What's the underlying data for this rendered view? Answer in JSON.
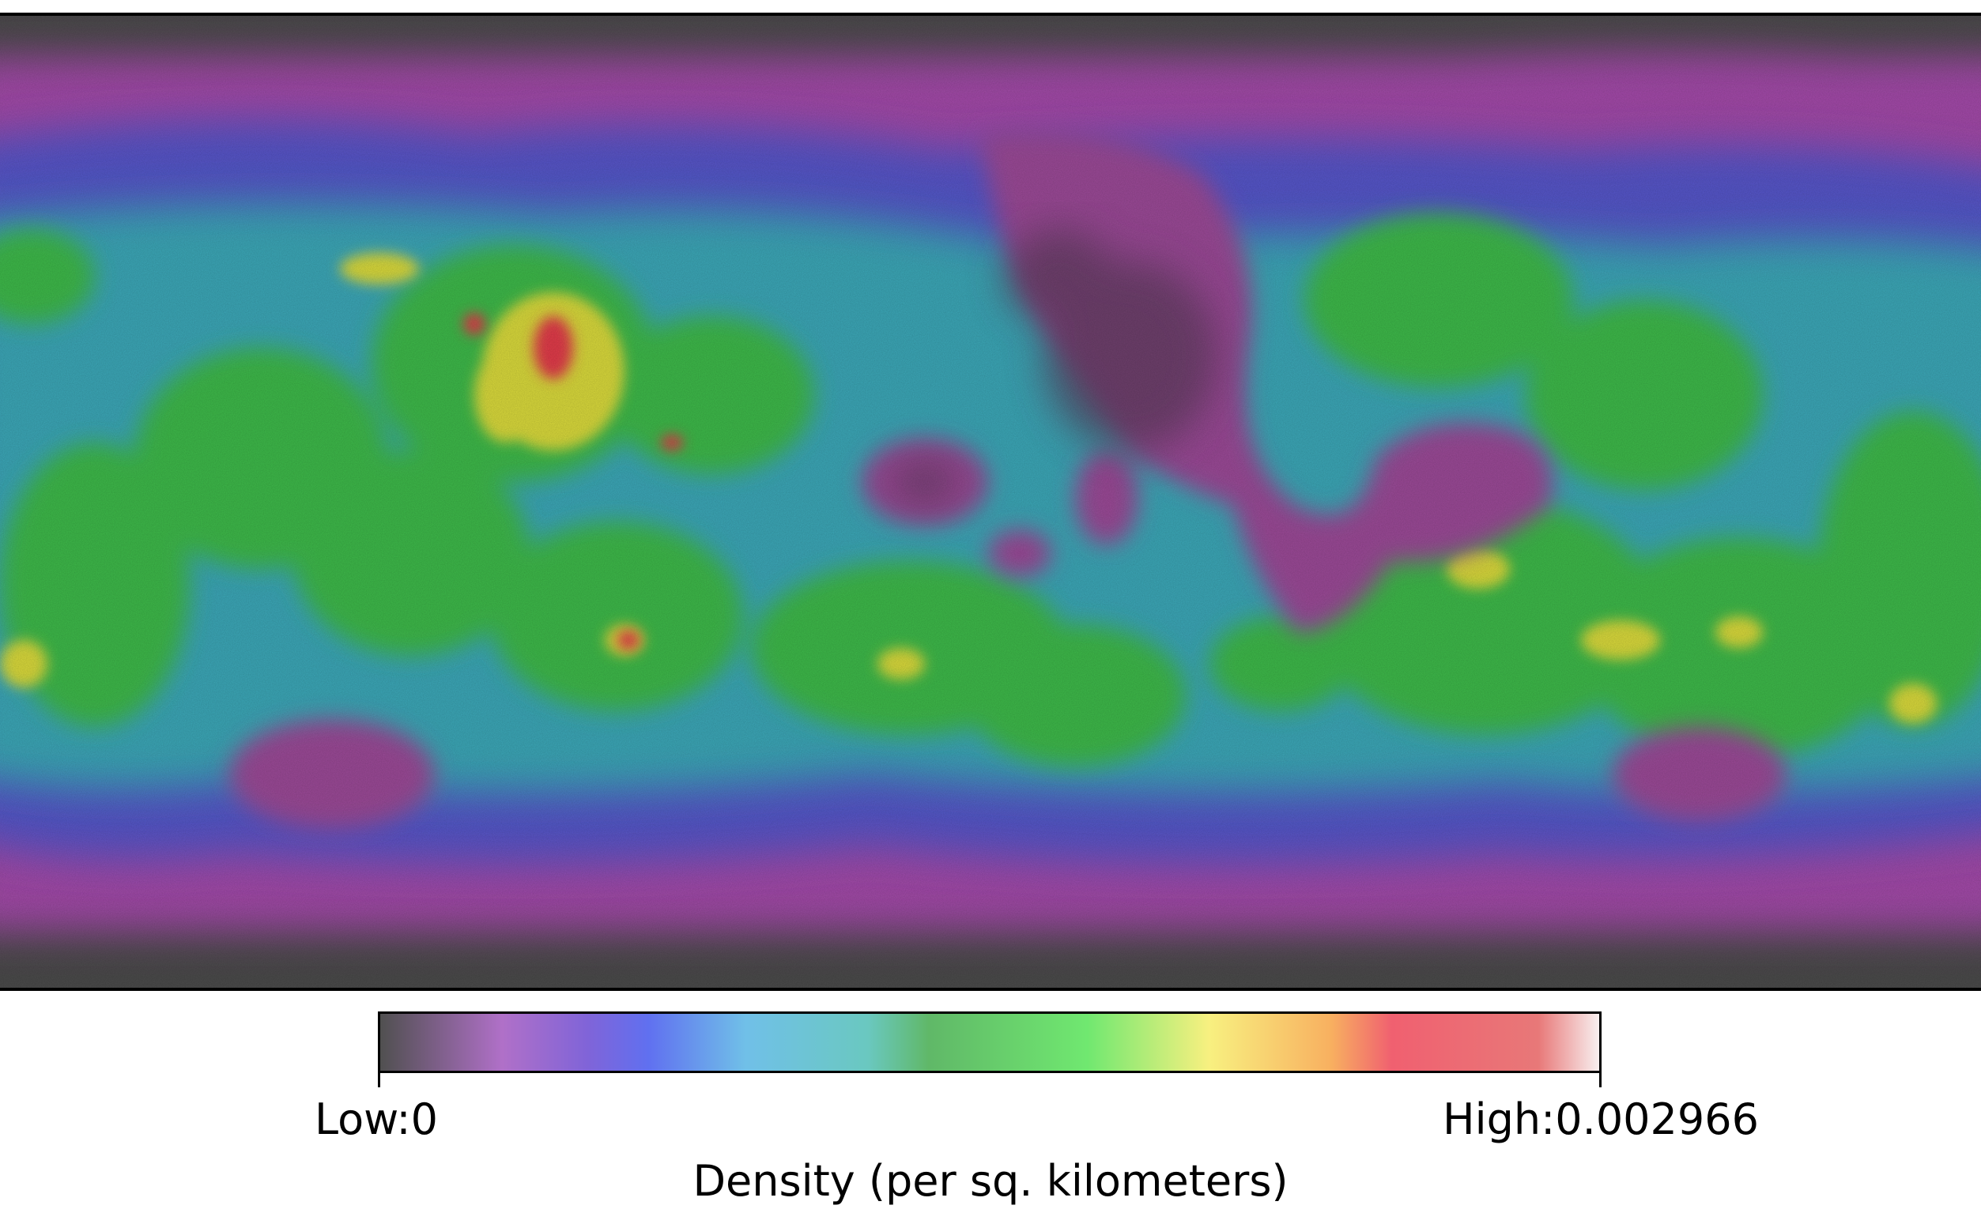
{
  "map": {
    "layer": "density surface",
    "background_colors": {
      "frame": "#000000",
      "polar_low": "#4a4a4a"
    },
    "palette": [
      "#505050",
      "#a050b0",
      "#5050c8",
      "#3aa8b8",
      "#38b850",
      "#d8e040",
      "#e03040"
    ]
  },
  "legend": {
    "low_label": "Low:0",
    "high_label": "High:0.002966",
    "title": "Density (per sq. kilometers)",
    "low_value": 0,
    "high_value": 0.002966,
    "unit": "per sq. kilometers"
  }
}
